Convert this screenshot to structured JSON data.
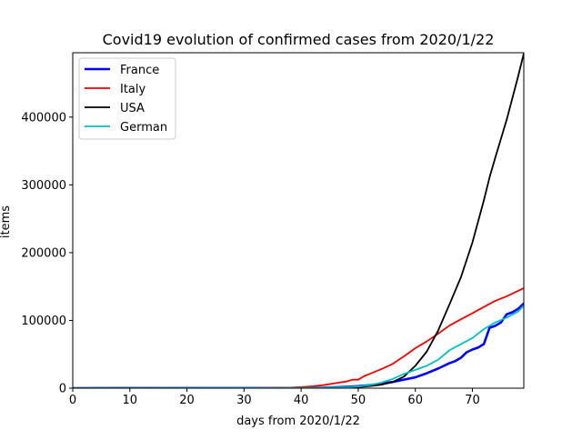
{
  "chart_data": {
    "type": "line",
    "title": "Covid19 evolution of confirmed cases from 2020/1/22",
    "xlabel": "days from 2020/1/22",
    "ylabel": "items",
    "xlim": [
      0,
      79
    ],
    "ylim": [
      0,
      495000
    ],
    "xticks": [
      0,
      10,
      20,
      30,
      40,
      50,
      60,
      70
    ],
    "xtick_labels": [
      "0",
      "10",
      "20",
      "30",
      "40",
      "50",
      "60",
      "70"
    ],
    "yticks": [
      0,
      100000,
      200000,
      300000,
      400000
    ],
    "ytick_labels": [
      "0",
      "100000",
      "200000",
      "300000",
      "400000"
    ],
    "grid": false,
    "legend_position": "top-left",
    "series": [
      {
        "name": "France",
        "color": "#0000ff",
        "bold": true,
        "points": [
          [
            0,
            0
          ],
          [
            35,
            100
          ],
          [
            40,
            200
          ],
          [
            44,
            700
          ],
          [
            48,
            2000
          ],
          [
            50,
            3000
          ],
          [
            52,
            4500
          ],
          [
            54,
            6600
          ],
          [
            56,
            9100
          ],
          [
            58,
            12600
          ],
          [
            60,
            16000
          ],
          [
            62,
            22000
          ],
          [
            64,
            29000
          ],
          [
            66,
            37000
          ],
          [
            67,
            40000
          ],
          [
            68,
            45000
          ],
          [
            69,
            53000
          ],
          [
            70,
            57000
          ],
          [
            71,
            60000
          ],
          [
            72,
            65000
          ],
          [
            73,
            89000
          ],
          [
            74,
            92000
          ],
          [
            75,
            97000
          ],
          [
            76,
            109000
          ],
          [
            77,
            112000
          ],
          [
            78,
            117000
          ],
          [
            79,
            125000
          ]
        ]
      },
      {
        "name": "Italy",
        "color": "#ee0000",
        "bold": false,
        "points": [
          [
            0,
            0
          ],
          [
            30,
            200
          ],
          [
            35,
            500
          ],
          [
            38,
            800
          ],
          [
            40,
            1700
          ],
          [
            42,
            2800
          ],
          [
            44,
            4600
          ],
          [
            46,
            7400
          ],
          [
            48,
            10000
          ],
          [
            49,
            12500
          ],
          [
            50,
            12500
          ],
          [
            51,
            17600
          ],
          [
            52,
            21100
          ],
          [
            54,
            27900
          ],
          [
            56,
            35700
          ],
          [
            58,
            47000
          ],
          [
            60,
            59000
          ],
          [
            62,
            69000
          ],
          [
            64,
            80500
          ],
          [
            66,
            92500
          ],
          [
            68,
            101700
          ],
          [
            70,
            110600
          ],
          [
            72,
            119800
          ],
          [
            74,
            128900
          ],
          [
            76,
            135600
          ],
          [
            78,
            143600
          ],
          [
            79,
            147600
          ]
        ]
      },
      {
        "name": "USA",
        "color": "#000000",
        "bold": false,
        "points": [
          [
            0,
            0
          ],
          [
            40,
            100
          ],
          [
            45,
            500
          ],
          [
            50,
            1500
          ],
          [
            52,
            3000
          ],
          [
            54,
            5000
          ],
          [
            56,
            9000
          ],
          [
            58,
            17000
          ],
          [
            60,
            33000
          ],
          [
            62,
            54000
          ],
          [
            64,
            85000
          ],
          [
            66,
            124000
          ],
          [
            68,
            164000
          ],
          [
            70,
            215000
          ],
          [
            72,
            277000
          ],
          [
            73,
            311000
          ],
          [
            74,
            340000
          ],
          [
            76,
            396000
          ],
          [
            78,
            460000
          ],
          [
            79,
            494000
          ]
        ]
      },
      {
        "name": "German",
        "color": "#00bfbf",
        "bold": false,
        "points": [
          [
            0,
            0
          ],
          [
            35,
            200
          ],
          [
            40,
            500
          ],
          [
            45,
            900
          ],
          [
            48,
            1500
          ],
          [
            50,
            2500
          ],
          [
            52,
            4500
          ],
          [
            54,
            8000
          ],
          [
            56,
            13500
          ],
          [
            58,
            21000
          ],
          [
            60,
            27000
          ],
          [
            62,
            33000
          ],
          [
            64,
            42000
          ],
          [
            66,
            56000
          ],
          [
            68,
            65000
          ],
          [
            70,
            74000
          ],
          [
            72,
            87000
          ],
          [
            74,
            97000
          ],
          [
            76,
            104000
          ],
          [
            78,
            113000
          ],
          [
            79,
            122000
          ]
        ]
      }
    ]
  }
}
